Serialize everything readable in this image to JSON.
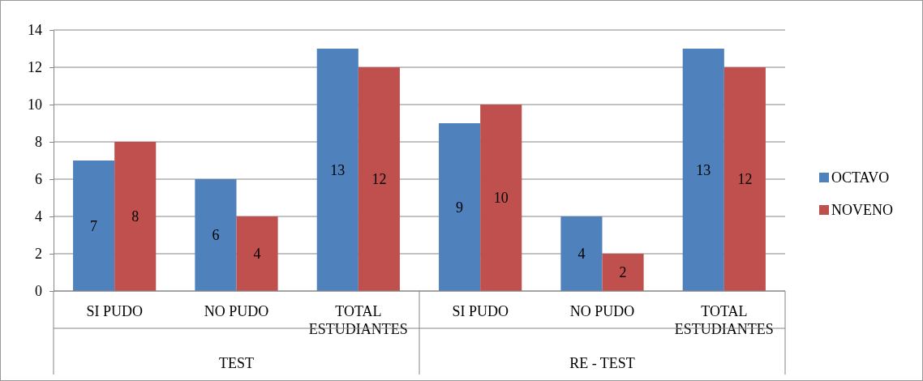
{
  "chart_data": {
    "type": "bar",
    "categories": [
      "SI PUDO",
      "NO PUDO",
      "TOTAL ESTUDIANTES",
      "SI PUDO",
      "NO PUDO",
      "TOTAL ESTUDIANTES"
    ],
    "series": [
      {
        "name": "OCTAVO",
        "color": "#4f81bd",
        "values": [
          7,
          6,
          13,
          9,
          4,
          13
        ]
      },
      {
        "name": "NOVENO",
        "color": "#c0504d",
        "values": [
          8,
          4,
          12,
          10,
          2,
          12
        ]
      }
    ],
    "annotations": [
      "TEST",
      "RE - TEST"
    ],
    "ylim": [
      0,
      14
    ],
    "yticks": [
      0,
      2,
      4,
      6,
      8,
      10,
      12,
      14
    ],
    "grid": "y",
    "legend": "right",
    "data_labels": true
  }
}
